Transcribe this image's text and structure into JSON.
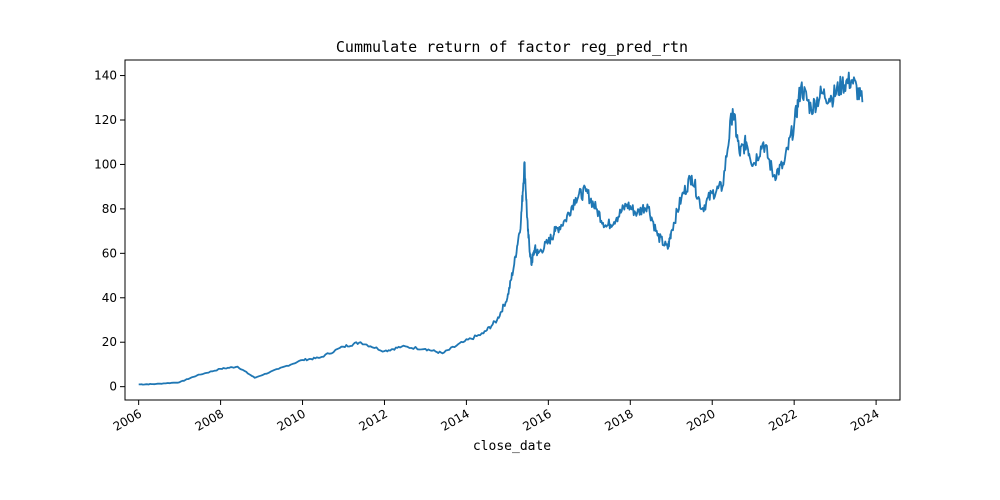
{
  "chart_data": {
    "type": "line",
    "title": "Cummulate return of factor reg_pred_rtn",
    "xlabel": "close_date",
    "ylabel": "",
    "xlim": [
      "2005-09-01",
      "2024-08-01"
    ],
    "ylim": [
      -6,
      147
    ],
    "xticks": [
      "2006",
      "2008",
      "2010",
      "2012",
      "2014",
      "2016",
      "2018",
      "2020",
      "2022",
      "2024"
    ],
    "yticks": [
      0,
      20,
      40,
      60,
      80,
      100,
      120,
      140
    ],
    "grid": false,
    "legend": "none",
    "color": "#1f77b4",
    "series": [
      {
        "x": [
          "2006-01-01",
          "2006-06-01",
          "2007-01-01",
          "2007-06-01",
          "2008-01-01",
          "2008-06-01",
          "2008-11-01",
          "2009-06-01",
          "2010-01-01",
          "2010-06-01",
          "2011-01-01",
          "2011-06-01",
          "2012-01-01",
          "2012-06-01",
          "2013-01-01",
          "2013-06-01",
          "2013-12-01",
          "2014-06-01",
          "2014-10-01",
          "2015-01-01",
          "2015-03-01",
          "2015-05-01",
          "2015-06-01",
          "2015-07-01",
          "2015-08-01",
          "2015-09-01",
          "2015-10-01",
          "2016-01-01",
          "2016-03-01",
          "2016-06-01",
          "2016-09-01",
          "2016-12-01",
          "2017-03-01",
          "2017-06-01",
          "2017-09-01",
          "2017-12-01",
          "2018-03-01",
          "2018-06-01",
          "2018-09-01",
          "2018-12-01",
          "2019-01-01",
          "2019-04-01",
          "2019-07-01",
          "2019-10-01",
          "2020-01-01",
          "2020-04-01",
          "2020-07-01",
          "2020-09-01",
          "2020-11-01",
          "2021-01-01",
          "2021-04-01",
          "2021-07-01",
          "2021-10-01",
          "2022-01-01",
          "2022-03-01",
          "2022-06-01",
          "2022-09-01",
          "2022-12-01",
          "2023-03-01",
          "2023-06-01",
          "2023-09-01"
        ],
        "y": [
          1,
          1.2,
          2,
          5,
          8,
          9,
          4,
          8,
          12,
          13,
          18,
          20,
          16,
          18,
          17,
          15,
          20,
          24,
          30,
          40,
          55,
          75,
          101,
          70,
          55,
          62,
          60,
          65,
          70,
          75,
          85,
          88,
          80,
          72,
          76,
          82,
          78,
          82,
          68,
          62,
          70,
          85,
          95,
          80,
          87,
          90,
          125,
          105,
          110,
          100,
          110,
          95,
          100,
          118,
          135,
          125,
          132,
          130,
          136,
          138,
          128
        ]
      }
    ]
  }
}
